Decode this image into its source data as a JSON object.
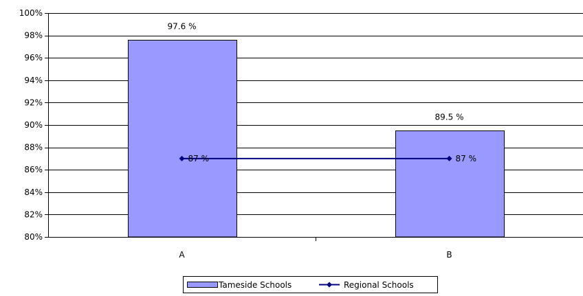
{
  "chart_data": {
    "type": "bar",
    "categories": [
      "A",
      "B"
    ],
    "series": [
      {
        "name": "Tameside Schools",
        "kind": "bar",
        "values": [
          97.6,
          89.5
        ],
        "labels": [
          "97.6 %",
          "89.5 %"
        ],
        "color": "#9999ff"
      },
      {
        "name": "Regional Schools",
        "kind": "line",
        "values": [
          87,
          87
        ],
        "labels": [
          "87 %",
          "87 %"
        ],
        "color": "#000080"
      }
    ],
    "ylim": [
      80,
      100
    ],
    "yticks": [
      "80%",
      "82%",
      "84%",
      "86%",
      "88%",
      "90%",
      "92%",
      "94%",
      "96%",
      "98%",
      "100%"
    ],
    "ytick_values": [
      80,
      82,
      84,
      86,
      88,
      90,
      92,
      94,
      96,
      98,
      100
    ],
    "grid": true,
    "legend": "bottom"
  }
}
